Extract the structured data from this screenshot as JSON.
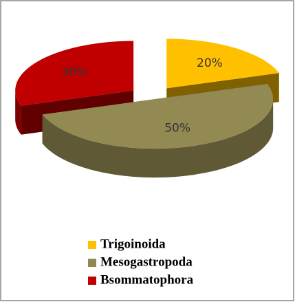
{
  "chart_data": {
    "type": "pie",
    "categories": [
      "Trigoinoida",
      "Mesogastropoda",
      "Bsommatophora"
    ],
    "values": [
      20,
      50,
      30
    ],
    "value_labels": [
      "20%",
      "50%",
      "30%"
    ],
    "colors": [
      "#ffc000",
      "#938953",
      "#c00000"
    ],
    "explode": [
      true,
      false,
      true
    ],
    "legend": "bottom"
  }
}
